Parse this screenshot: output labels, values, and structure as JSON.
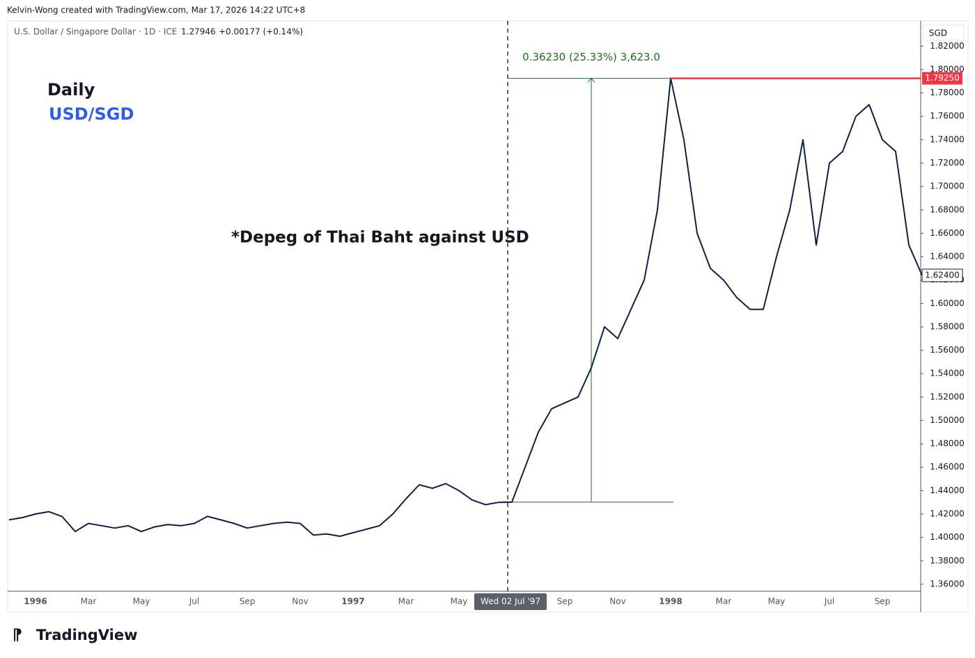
{
  "header": {
    "attribution": "Kelvin-Wong created with TradingView.com, Mar 17, 2026 14:22 UTC+8",
    "price": "1.27946",
    "change": "+0.00177 (+0.14%)",
    "currency": "SGD",
    "logo": "TradingView"
  },
  "chart_data": {
    "type": "line",
    "annotations": {
      "timeframe": "Daily",
      "pair": "USD/SGD",
      "event": "*Depeg of Thai Baht against USD",
      "measure": "0.36230 (25.33%) 3,623.0"
    },
    "categories": [
      null,
      null,
      "1996",
      null,
      null,
      null,
      "Mar",
      null,
      null,
      null,
      "May",
      null,
      null,
      null,
      "Jul",
      null,
      null,
      null,
      "Sep",
      null,
      null,
      null,
      "Nov",
      null,
      null,
      null,
      "1997",
      null,
      null,
      null,
      "Mar",
      null,
      null,
      null,
      "May",
      null,
      null,
      null,
      "Wed 02 Jul '97",
      null,
      null,
      null,
      "Sep",
      null,
      null,
      null,
      "Nov",
      null,
      null,
      null,
      "1998",
      null,
      null,
      null,
      "Mar",
      null,
      null,
      null,
      "May",
      null,
      null,
      null,
      "Jul",
      null,
      null,
      null,
      "Sep",
      null,
      null,
      null
    ],
    "series": [
      {
        "name": "U.S. Dollar / Singapore Dollar · 1D · ICE",
        "color": "#0f1f44",
        "values": [
          1.415,
          1.417,
          1.42,
          1.422,
          1.418,
          1.405,
          1.412,
          1.41,
          1.408,
          1.41,
          1.405,
          1.409,
          1.411,
          1.41,
          1.412,
          1.418,
          1.415,
          1.412,
          1.408,
          1.41,
          1.412,
          1.413,
          1.412,
          1.402,
          1.403,
          1.401,
          1.404,
          1.407,
          1.41,
          1.42,
          1.433,
          1.445,
          1.442,
          1.446,
          1.44,
          1.432,
          1.428,
          1.43,
          1.4302,
          1.46,
          1.49,
          1.51,
          1.515,
          1.52,
          1.545,
          1.58,
          1.57,
          1.595,
          1.62,
          1.68,
          1.7925,
          1.74,
          1.66,
          1.63,
          1.62,
          1.605,
          1.595,
          1.595,
          1.64,
          1.68,
          1.74,
          1.65,
          1.72,
          1.73,
          1.76,
          1.77,
          1.74,
          1.73,
          1.65,
          1.624
        ]
      }
    ],
    "high_price": {
      "value": 1.7925,
      "label": "1.79250"
    },
    "last_price": {
      "value": 1.624,
      "label": "1.62400"
    },
    "ylim": [
      1.354,
      1.8416
    ],
    "yticks": [
      {
        "value": 1.36,
        "label": "1.36000"
      },
      {
        "value": 1.38,
        "label": "1.38000"
      },
      {
        "value": 1.4,
        "label": "1.40000"
      },
      {
        "value": 1.42,
        "label": "1.42000"
      },
      {
        "value": 1.44,
        "label": "1.44000"
      },
      {
        "value": 1.46,
        "label": "1.46000"
      },
      {
        "value": 1.48,
        "label": "1.48000"
      },
      {
        "value": 1.5,
        "label": "1.50000"
      },
      {
        "value": 1.52,
        "label": "1.52000"
      },
      {
        "value": 1.54,
        "label": "1.54000"
      },
      {
        "value": 1.56,
        "label": "1.56000"
      },
      {
        "value": 1.58,
        "label": "1.58000"
      },
      {
        "value": 1.6,
        "label": "1.60000"
      },
      {
        "value": 1.62,
        "label": "1.62000"
      },
      {
        "value": 1.64,
        "label": "1.64000"
      },
      {
        "value": 1.66,
        "label": "1.66000"
      },
      {
        "value": 1.68,
        "label": "1.68000"
      },
      {
        "value": 1.7,
        "label": "1.70000"
      },
      {
        "value": 1.72,
        "label": "1.72000"
      },
      {
        "value": 1.74,
        "label": "1.74000"
      },
      {
        "value": 1.76,
        "label": "1.76000"
      },
      {
        "value": 1.78,
        "label": "1.78000"
      },
      {
        "value": 1.8,
        "label": "1.80000"
      },
      {
        "value": 1.82,
        "label": "1.82000"
      }
    ],
    "grid": false
  }
}
